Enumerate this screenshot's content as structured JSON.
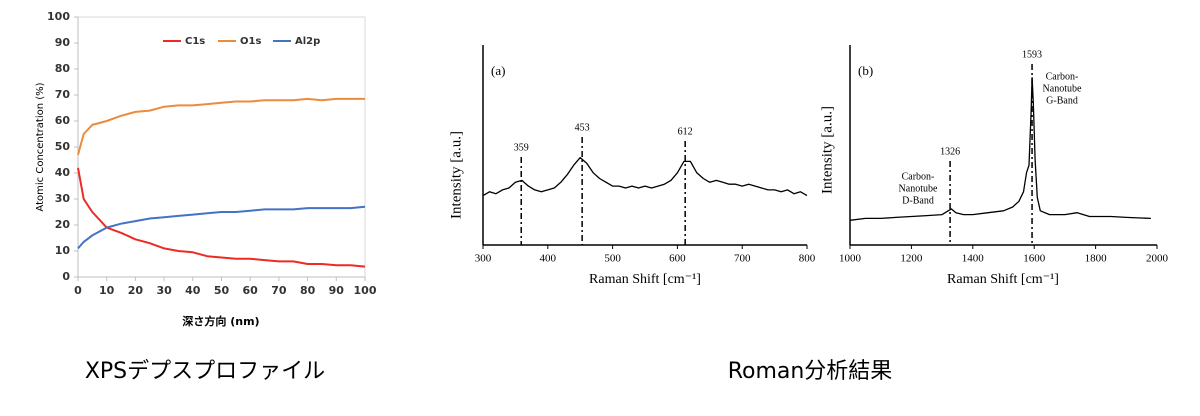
{
  "chart_data": [
    {
      "type": "line",
      "xlabel": "深さ方向 (nm)",
      "ylabel": "Atomic Concentration (%)",
      "x": [
        0,
        2,
        5,
        10,
        15,
        20,
        25,
        30,
        35,
        40,
        45,
        50,
        55,
        60,
        65,
        70,
        75,
        80,
        85,
        90,
        95,
        100
      ],
      "series": [
        {
          "name": "C1s",
          "color": "#ee2a24",
          "values": [
            42,
            30,
            25,
            19,
            17,
            14.5,
            13,
            11,
            10,
            9.5,
            8,
            7.5,
            7,
            7,
            6.5,
            6,
            6,
            5,
            5,
            4.5,
            4.5,
            4
          ]
        },
        {
          "name": "O1s",
          "color": "#ed8b3c",
          "values": [
            47,
            55,
            58.5,
            60,
            62,
            63.5,
            64,
            65.5,
            66,
            66,
            66.5,
            67,
            67.5,
            67.5,
            68,
            68,
            68,
            68.5,
            68,
            68.5,
            68.5,
            68.5
          ]
        },
        {
          "name": "Al2p",
          "color": "#4472c4",
          "values": [
            11,
            13.5,
            16,
            19,
            20.5,
            21.5,
            22.5,
            23,
            23.5,
            24,
            24.5,
            25,
            25,
            25.5,
            26,
            26,
            26,
            26.5,
            26.5,
            26.5,
            26.5,
            27
          ]
        }
      ],
      "xlim": [
        0,
        100
      ],
      "xticks": [
        0,
        10,
        20,
        30,
        40,
        50,
        60,
        70,
        80,
        90,
        100
      ],
      "ylim": [
        0,
        100
      ],
      "yticks": [
        0,
        10,
        20,
        30,
        40,
        50,
        60,
        70,
        80,
        90,
        100
      ],
      "legend": "top"
    },
    {
      "type": "line",
      "panel": "(a)",
      "xlabel": "Raman Shift [cm⁻¹]",
      "ylabel": "Intensity [a.u.]",
      "x": [
        300,
        310,
        320,
        330,
        340,
        350,
        360,
        370,
        380,
        390,
        400,
        410,
        420,
        430,
        440,
        450,
        460,
        470,
        480,
        490,
        500,
        510,
        520,
        530,
        540,
        550,
        560,
        570,
        580,
        590,
        600,
        610,
        620,
        630,
        640,
        650,
        660,
        670,
        680,
        690,
        700,
        710,
        720,
        730,
        740,
        750,
        760,
        770,
        780,
        790,
        800
      ],
      "series": [
        {
          "color": "#000000",
          "values": [
            26,
            28,
            27,
            29,
            30,
            33,
            34,
            31,
            29,
            28,
            29,
            30,
            33,
            37,
            42,
            46,
            43,
            38,
            35,
            33,
            31,
            31,
            30,
            31,
            30,
            31,
            30,
            31,
            32,
            34,
            38,
            44,
            44,
            38,
            35,
            33,
            34,
            33,
            32,
            32,
            31,
            32,
            31,
            30,
            29,
            29,
            28,
            29,
            27,
            28,
            26
          ]
        }
      ],
      "xlim": [
        300,
        800
      ],
      "xticks": [
        300,
        400,
        500,
        600,
        700,
        800
      ],
      "ylim": [
        0,
        100
      ],
      "peaks": [
        359,
        453,
        612
      ]
    },
    {
      "type": "line",
      "panel": "(b)",
      "xlabel": "Raman Shift [cm⁻¹]",
      "ylabel": "Intensity [a.u.]",
      "x": [
        1000,
        1050,
        1100,
        1150,
        1200,
        1250,
        1300,
        1320,
        1330,
        1345,
        1370,
        1400,
        1450,
        1500,
        1530,
        1550,
        1565,
        1575,
        1583,
        1590,
        1593,
        1597,
        1603,
        1610,
        1620,
        1650,
        1700,
        1740,
        1780,
        1850,
        1900,
        1980
      ],
      "series": [
        {
          "color": "#000000",
          "values": [
            13,
            14,
            14,
            14.5,
            15,
            15.5,
            16,
            18,
            19,
            17,
            16,
            16,
            17,
            18,
            20,
            23,
            28,
            38,
            42,
            70,
            88,
            75,
            45,
            25,
            18,
            16,
            16,
            17,
            15,
            15,
            14.5,
            14
          ]
        }
      ],
      "xlim": [
        1000,
        2000
      ],
      "xticks": [
        1000,
        1200,
        1400,
        1600,
        1800,
        2000
      ],
      "ylim": [
        0,
        100
      ],
      "peaks": [
        1326,
        1593
      ],
      "annotations": [
        [
          "Carbon-",
          "Nanotube",
          "D-Band"
        ],
        [
          "Carbon-",
          "Nanotube",
          "G-Band"
        ]
      ]
    }
  ],
  "captions": [
    "XPSデプスプロファイル",
    "Roman分析結果"
  ]
}
